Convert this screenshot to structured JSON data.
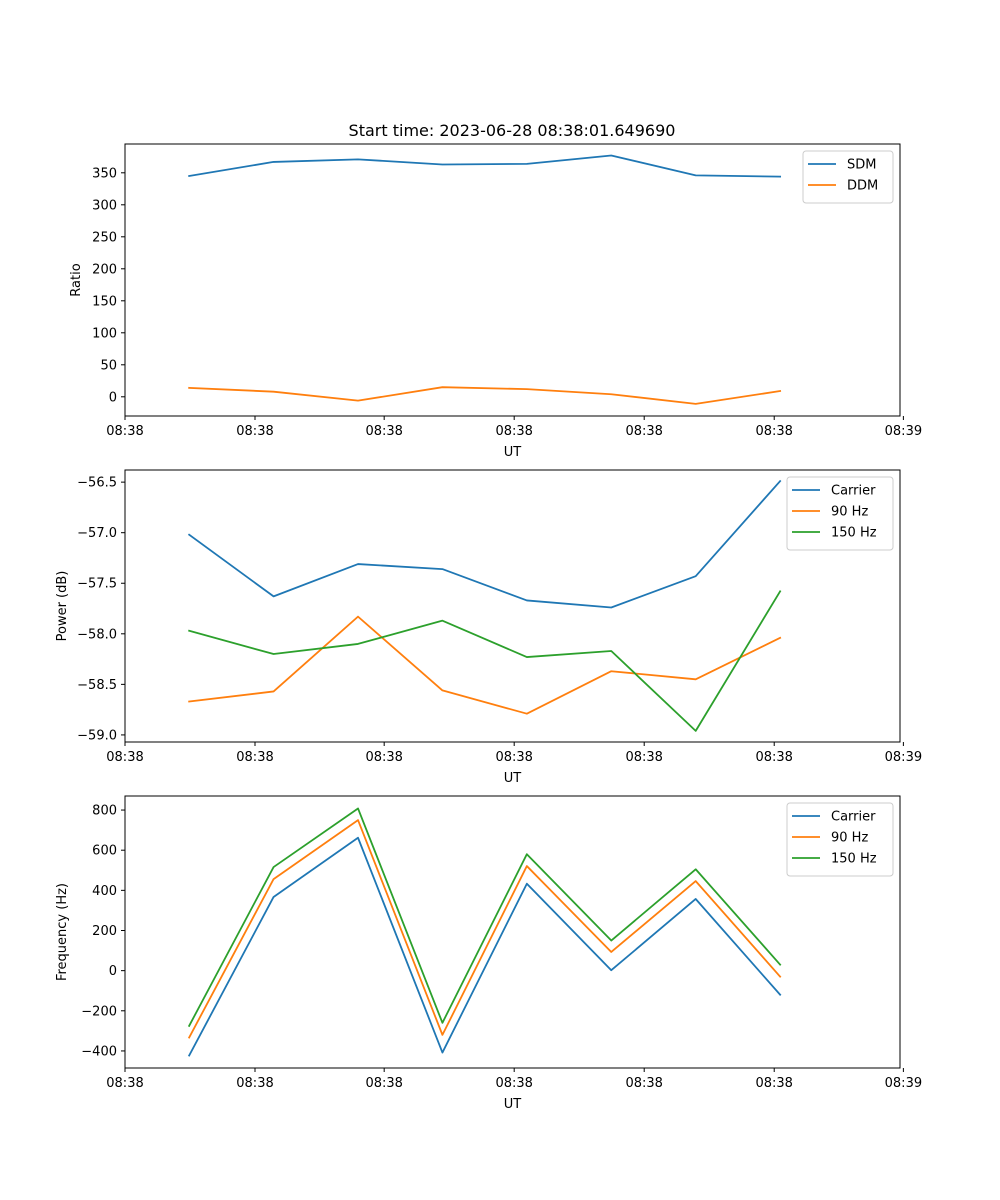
{
  "figure_title": "Start time: 2023-06-28 08:38:01.649690",
  "chart_data": [
    {
      "type": "line",
      "name": "ratio",
      "title": "Start time: 2023-06-28 08:38:01.649690",
      "xlabel": "UT",
      "ylabel": "Ratio",
      "x": [
        1,
        2,
        3,
        4,
        5,
        6,
        7,
        8
      ],
      "xlim": [
        0.24,
        9.42
      ],
      "xticks": [
        0.24,
        1.78,
        3.31,
        4.85,
        6.39,
        7.93,
        9.46
      ],
      "xtick_labels": [
        "08:38",
        "08:38",
        "08:38",
        "08:38",
        "08:38",
        "08:38",
        "08:39"
      ],
      "ylim": [
        -30,
        395
      ],
      "yticks": [
        0,
        50,
        100,
        150,
        200,
        250,
        300,
        350
      ],
      "ytick_labels": [
        "0",
        "50",
        "100",
        "150",
        "200",
        "250",
        "300",
        "350"
      ],
      "legend_loc": "upper right",
      "series": [
        {
          "name": "SDM",
          "color": "#1f77b4",
          "values": [
            345,
            367,
            371,
            363,
            364,
            377,
            346,
            344
          ]
        },
        {
          "name": "DDM",
          "color": "#ff7f0e",
          "values": [
            14,
            8,
            -6,
            15,
            12,
            4,
            -11,
            9
          ]
        }
      ]
    },
    {
      "type": "line",
      "name": "power",
      "xlabel": "UT",
      "ylabel": "Power (dB)",
      "x": [
        1,
        2,
        3,
        4,
        5,
        6,
        7,
        8
      ],
      "xlim": [
        0.24,
        9.42
      ],
      "xticks": [
        0.24,
        1.78,
        3.31,
        4.85,
        6.39,
        7.93,
        9.46
      ],
      "xtick_labels": [
        "08:38",
        "08:38",
        "08:38",
        "08:38",
        "08:38",
        "08:38",
        "08:39"
      ],
      "ylim": [
        -59.07,
        -56.38
      ],
      "yticks": [
        -59.0,
        -58.5,
        -58.0,
        -57.5,
        -57.0,
        -56.5
      ],
      "ytick_labels": [
        "−59.0",
        "−58.5",
        "−58.0",
        "−57.5",
        "−57.0",
        "−56.5"
      ],
      "legend_loc": "upper right",
      "series": [
        {
          "name": "Carrier",
          "color": "#1f77b4",
          "values": [
            -57.02,
            -57.63,
            -57.31,
            -57.36,
            -57.67,
            -57.74,
            -57.43,
            -56.49
          ]
        },
        {
          "name": "90 Hz",
          "color": "#ff7f0e",
          "values": [
            -58.67,
            -58.57,
            -57.83,
            -58.56,
            -58.79,
            -58.37,
            -58.45,
            -58.04
          ]
        },
        {
          "name": "150 Hz",
          "color": "#2ca02c",
          "values": [
            -57.97,
            -58.2,
            -58.1,
            -57.87,
            -58.23,
            -58.17,
            -58.96,
            -57.58
          ]
        }
      ]
    },
    {
      "type": "line",
      "name": "frequency",
      "xlabel": "UT",
      "ylabel": "Frequency (Hz)",
      "x": [
        1,
        2,
        3,
        4,
        5,
        6,
        7,
        8
      ],
      "xlim": [
        0.24,
        9.42
      ],
      "xticks": [
        0.24,
        1.78,
        3.31,
        4.85,
        6.39,
        7.93,
        9.46
      ],
      "xtick_labels": [
        "08:38",
        "08:38",
        "08:38",
        "08:38",
        "08:38",
        "08:38",
        "08:39"
      ],
      "ylim": [
        -485,
        870
      ],
      "yticks": [
        -400,
        -200,
        0,
        200,
        400,
        600,
        800
      ],
      "ytick_labels": [
        "−400",
        "−200",
        "0",
        "200",
        "400",
        "600",
        "800"
      ],
      "legend_loc": "upper right",
      "series": [
        {
          "name": "Carrier",
          "color": "#1f77b4",
          "values": [
            -423,
            367,
            662,
            -408,
            433,
            2,
            357,
            -120
          ]
        },
        {
          "name": "90 Hz",
          "color": "#ff7f0e",
          "values": [
            -333,
            456,
            750,
            -320,
            521,
            93,
            446,
            -30
          ]
        },
        {
          "name": "150 Hz",
          "color": "#2ca02c",
          "values": [
            -275,
            516,
            808,
            -260,
            580,
            150,
            505,
            30
          ]
        }
      ]
    }
  ]
}
